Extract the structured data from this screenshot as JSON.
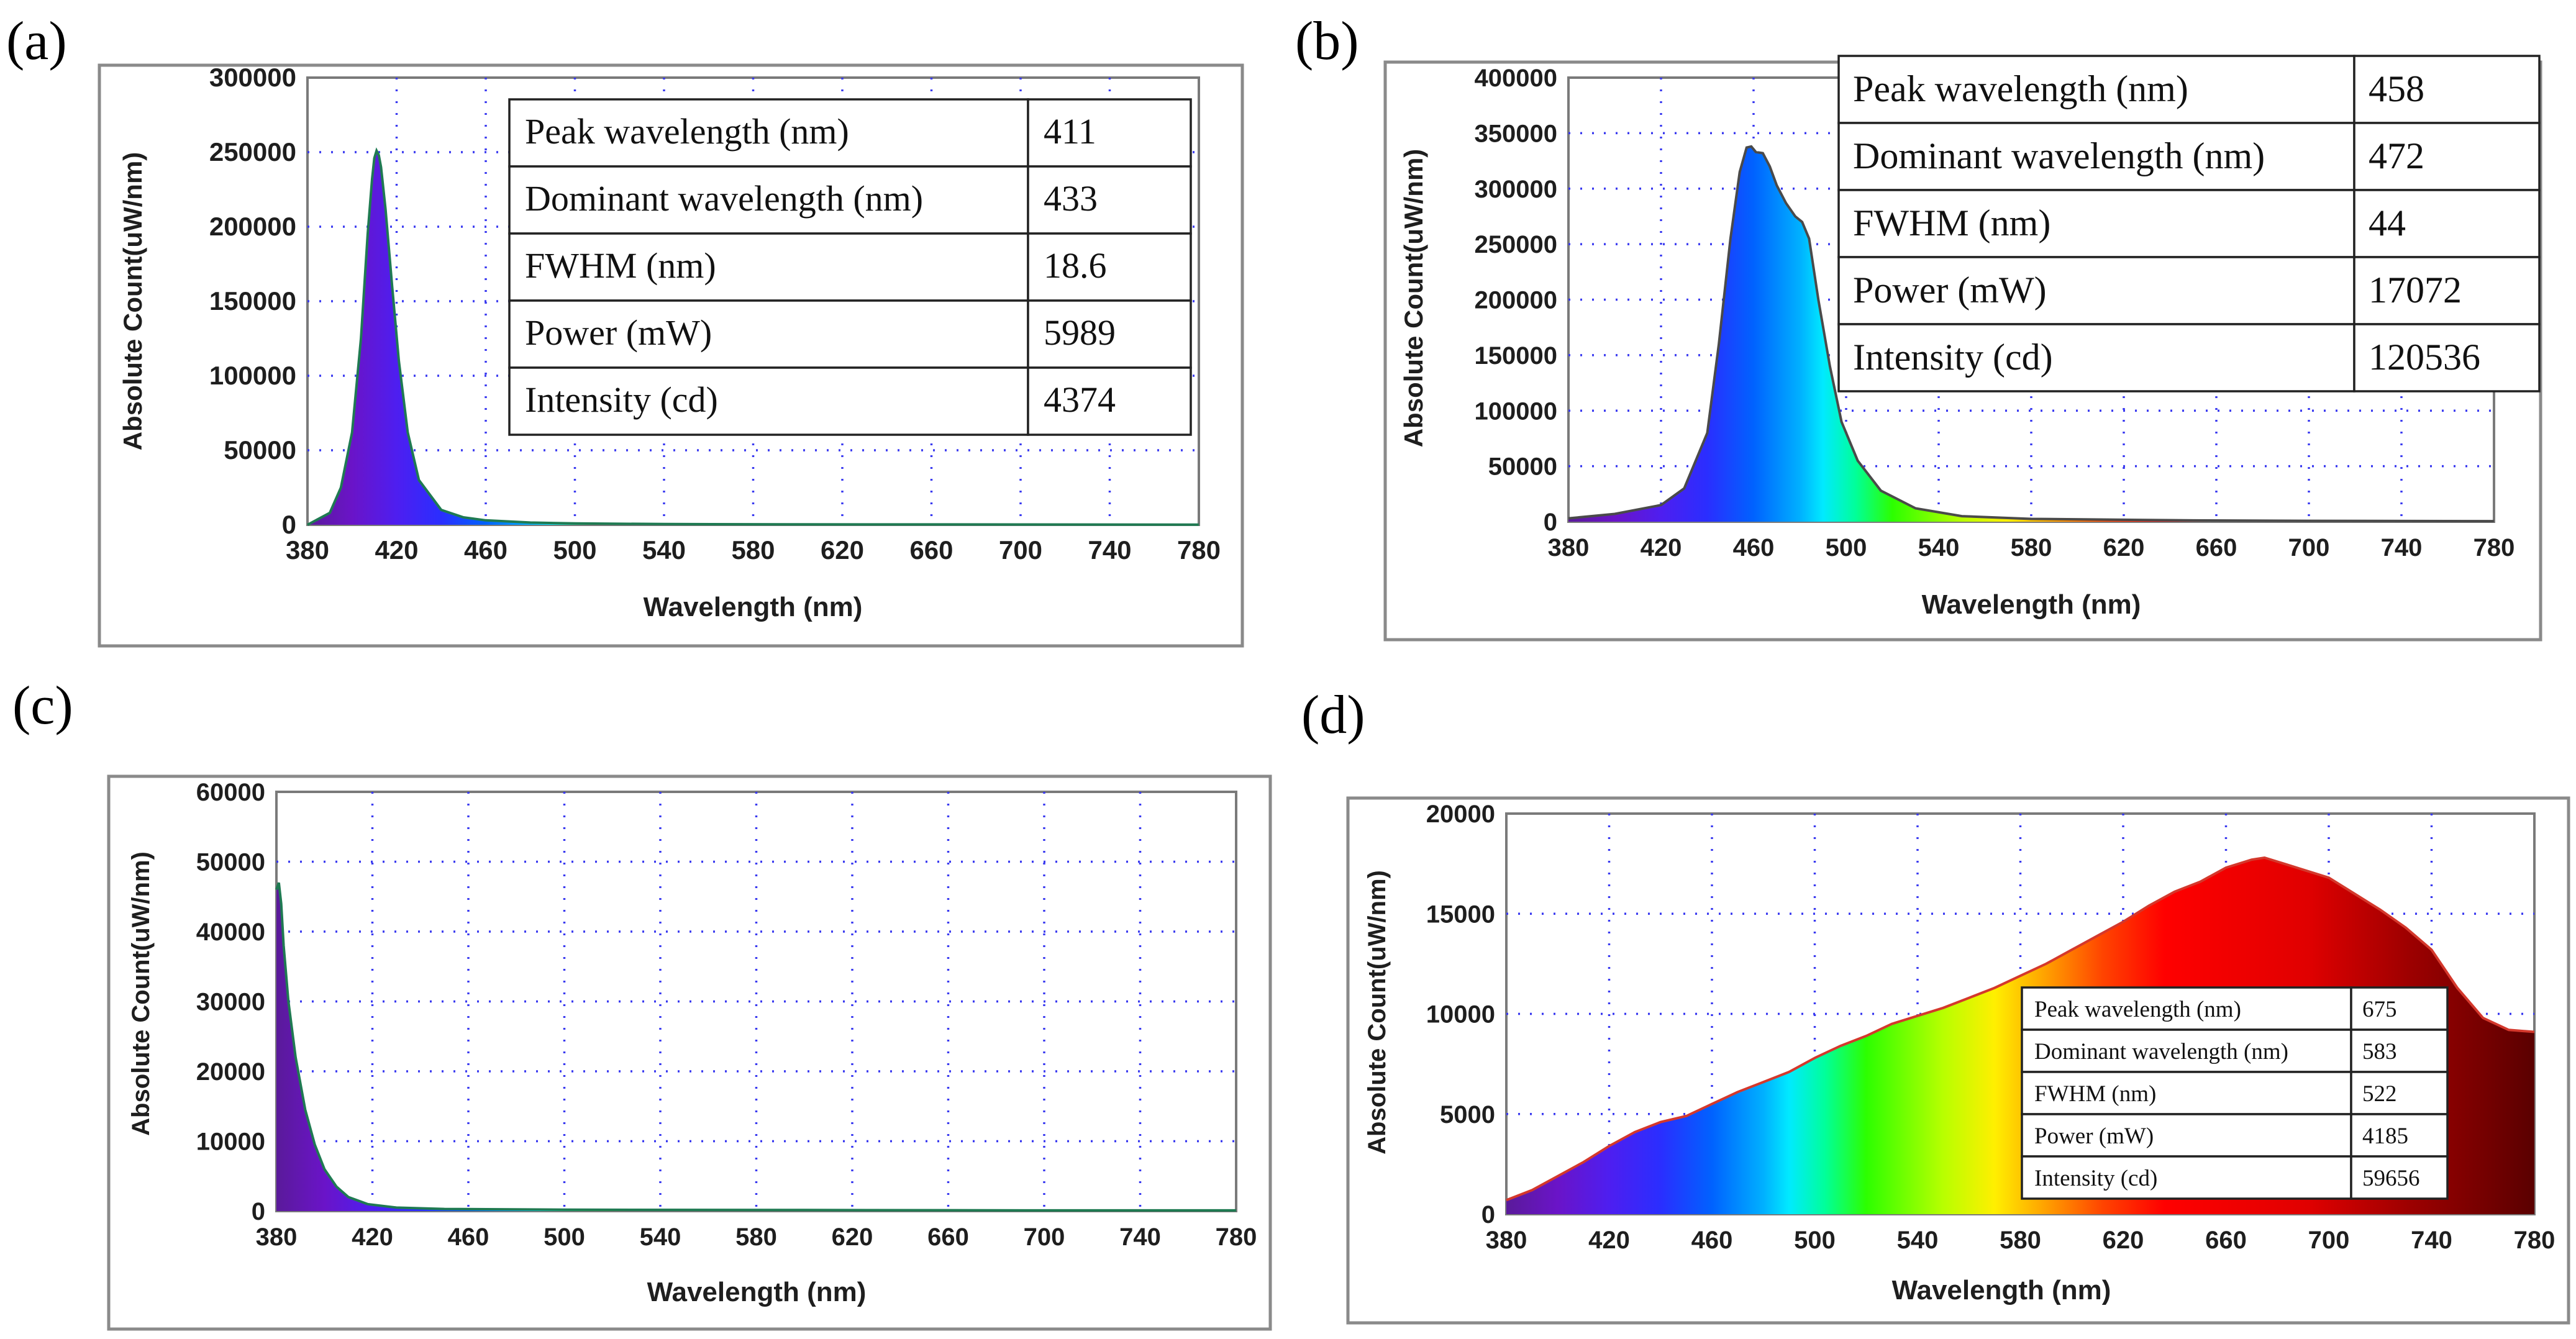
{
  "figure": {
    "panels": [
      "(a)",
      "(b)",
      "(c)",
      "(d)"
    ]
  },
  "chart_data": [
    {
      "id": "a",
      "type": "area",
      "panel_label": "(a)",
      "xlabel": "Wavelength (nm)",
      "ylabel": "Absolute Count(uW/nm)",
      "xlim": [
        380,
        780
      ],
      "ylim": [
        0,
        300000
      ],
      "xticks": [
        380,
        420,
        460,
        500,
        540,
        580,
        620,
        660,
        700,
        740,
        780
      ],
      "yticks": [
        0,
        50000,
        100000,
        150000,
        200000,
        250000,
        300000
      ],
      "grid": true,
      "fill": "spectral",
      "line_color": "#1f7a52",
      "x": [
        380,
        390,
        395,
        400,
        404,
        407,
        409,
        410,
        411,
        412,
        413,
        415,
        418,
        421,
        425,
        430,
        440,
        450,
        460,
        480,
        500,
        540,
        600,
        700,
        780
      ],
      "y": [
        0,
        8000,
        25000,
        62000,
        125000,
        195000,
        232000,
        246000,
        251000,
        248000,
        240000,
        212000,
        160000,
        110000,
        62000,
        30000,
        10000,
        5000,
        3000,
        1500,
        900,
        500,
        300,
        200,
        100
      ],
      "table": {
        "rows": [
          [
            "Peak wavelength (nm)",
            "411"
          ],
          [
            "Dominant wavelength (nm)",
            "433"
          ],
          [
            "FWHM (nm)",
            "18.6"
          ],
          [
            "Power (mW)",
            "5989"
          ],
          [
            "Intensity (cd)",
            "4374"
          ]
        ]
      }
    },
    {
      "id": "b",
      "type": "area",
      "panel_label": "(b)",
      "xlabel": "Wavelength (nm)",
      "ylabel": "Absolute Count(uW/nm)",
      "xlim": [
        380,
        780
      ],
      "ylim": [
        0,
        400000
      ],
      "xticks": [
        380,
        420,
        460,
        500,
        540,
        580,
        620,
        660,
        700,
        740,
        780
      ],
      "yticks": [
        0,
        50000,
        100000,
        150000,
        200000,
        250000,
        300000,
        350000,
        400000
      ],
      "grid": true,
      "fill": "spectral",
      "line_color": "#4a4a4a",
      "x": [
        380,
        400,
        420,
        430,
        440,
        445,
        450,
        454,
        457,
        459,
        461,
        464,
        467,
        470,
        474,
        478,
        481,
        484,
        488,
        493,
        498,
        505,
        515,
        530,
        550,
        580,
        650,
        700,
        780
      ],
      "y": [
        3000,
        7000,
        15000,
        30000,
        80000,
        160000,
        255000,
        315000,
        337000,
        338000,
        333000,
        332000,
        320000,
        303000,
        287000,
        275000,
        270000,
        255000,
        200000,
        140000,
        90000,
        55000,
        28000,
        12000,
        5000,
        2500,
        1200,
        800,
        500
      ],
      "table": {
        "rows": [
          [
            "Peak wavelength (nm)",
            "458"
          ],
          [
            "Dominant wavelength (nm)",
            "472"
          ],
          [
            "FWHM (nm)",
            "44"
          ],
          [
            "Power (mW)",
            "17072"
          ],
          [
            "Intensity (cd)",
            "120536"
          ]
        ]
      }
    },
    {
      "id": "c",
      "type": "area",
      "panel_label": "(c)",
      "xlabel": "Wavelength (nm)",
      "ylabel": "Absolute Count(uW/nm)",
      "xlim": [
        380,
        780
      ],
      "ylim": [
        0,
        60000
      ],
      "xticks": [
        380,
        420,
        460,
        500,
        540,
        580,
        620,
        660,
        700,
        740,
        780
      ],
      "yticks": [
        0,
        10000,
        20000,
        30000,
        40000,
        50000,
        60000
      ],
      "grid": true,
      "fill": "spectral",
      "line_color": "#1f7a52",
      "x": [
        380,
        381,
        382,
        383,
        385,
        388,
        392,
        396,
        400,
        405,
        410,
        418,
        430,
        450,
        500,
        600,
        700,
        780
      ],
      "y": [
        46000,
        47000,
        44000,
        38000,
        30000,
        22000,
        14500,
        9500,
        6000,
        3500,
        2000,
        1000,
        500,
        300,
        200,
        150,
        100,
        100
      ],
      "table": null
    },
    {
      "id": "d",
      "type": "area",
      "panel_label": "(d)",
      "xlabel": "Wavelength (nm)",
      "ylabel": "Absolute Count(uW/nm)",
      "xlim": [
        380,
        780
      ],
      "ylim": [
        0,
        20000
      ],
      "xticks": [
        380,
        420,
        460,
        500,
        540,
        580,
        620,
        660,
        700,
        740,
        780
      ],
      "yticks": [
        0,
        5000,
        10000,
        15000,
        20000
      ],
      "grid": true,
      "fill": "spectral",
      "line_color": "#d4382c",
      "x": [
        380,
        390,
        400,
        410,
        420,
        430,
        440,
        450,
        460,
        470,
        480,
        490,
        500,
        510,
        520,
        530,
        540,
        550,
        560,
        570,
        580,
        590,
        600,
        610,
        620,
        630,
        640,
        650,
        660,
        665,
        670,
        675,
        680,
        685,
        690,
        700,
        710,
        720,
        730,
        740,
        750,
        760,
        770,
        780
      ],
      "y": [
        700,
        1200,
        1900,
        2600,
        3400,
        4100,
        4600,
        4900,
        5500,
        6100,
        6600,
        7100,
        7800,
        8400,
        8900,
        9500,
        9900,
        10300,
        10800,
        11300,
        11900,
        12500,
        13200,
        13900,
        14600,
        15400,
        16100,
        16600,
        17300,
        17500,
        17700,
        17800,
        17600,
        17400,
        17200,
        16800,
        16000,
        15200,
        14300,
        13200,
        11300,
        9800,
        9200,
        9100
      ],
      "table": {
        "rows": [
          [
            "Peak wavelength (nm)",
            "675"
          ],
          [
            "Dominant wavelength (nm)",
            "583"
          ],
          [
            "FWHM (nm)",
            "522"
          ],
          [
            "Power (mW)",
            "4185"
          ],
          [
            "Intensity (cd)",
            "59656"
          ]
        ]
      }
    }
  ]
}
